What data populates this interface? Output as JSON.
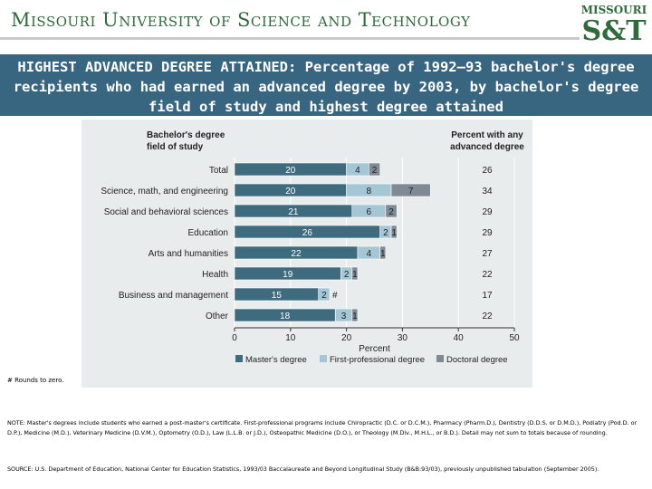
{
  "header": {
    "university": "Missouri University of Science and Technology",
    "logo_top": "MISSOURI",
    "logo_bottom": "S&T"
  },
  "banner": {
    "title": "HIGHEST ADVANCED DEGREE ATTAINED: Percentage of 1992–93 bachelor's degree recipients who had earned an advanced degree by 2003, by bachelor's degree field of study and highest degree attained"
  },
  "chart_data": {
    "type": "bar",
    "orientation": "horizontal",
    "stacked": true,
    "row_header": "Bachelor's degree field of study",
    "total_header": "Percent with any advanced degree",
    "xlabel": "Percent",
    "xlim": [
      0,
      50
    ],
    "xticks": [
      "0",
      "10",
      "20",
      "30",
      "40",
      "50"
    ],
    "categories": [
      "Total",
      "Science, math, and engineering",
      "Social and behavioral sciences",
      "Education",
      "Arts and humanities",
      "Health",
      "Business and management",
      "Other"
    ],
    "series": [
      {
        "name": "Master's degree",
        "color": "#3f6b7f",
        "values": [
          20,
          20,
          21,
          26,
          22,
          19,
          15,
          18
        ],
        "labels": [
          "20",
          "20",
          "21",
          "26",
          "22",
          "19",
          "15",
          "18"
        ]
      },
      {
        "name": "First-professional degree",
        "color": "#a5c6d4",
        "values": [
          4,
          8,
          6,
          2,
          4,
          2,
          2,
          3
        ],
        "labels": [
          "4",
          "8",
          "6",
          "2",
          "4",
          "2",
          "2",
          "3"
        ]
      },
      {
        "name": "Doctoral degree",
        "color": "#7f8a94",
        "values": [
          2,
          7,
          2,
          1,
          1,
          1,
          0,
          1
        ],
        "labels": [
          "2",
          "7",
          "2",
          "1",
          "1",
          "1",
          "#",
          "1"
        ]
      }
    ],
    "totals": [
      "26",
      "34",
      "29",
      "29",
      "27",
      "22",
      "17",
      "22"
    ],
    "legend_position": "bottom"
  },
  "footnote": "# Rounds to zero.",
  "note": "NOTE: Master's degrees include students who earned a post-master's certificate. First-professional programs include Chiropractic (D.C. or D.C.M.), Pharmacy (Pharm.D.), Dentistry (D.D.S. or D.M.D.), Podiatry (Pod.D. or D.P.), Medicine (M.D.), Veterinary Medicine (D.V.M.), Optometry (O.D.), Law (L.L.B. or J.D.), Osteopathic Medicine (D.O.), or Theology (M.Div., M.H.L., or B.D.). Detail may not sum to totals because of rounding.",
  "source": "SOURCE: U.S. Department of Education, National Center for Education Statistics, 1993/03 Baccalaureate and Beyond Longitudinal Study (B&B:93/03), previously unpublished tabulation (September 2005)."
}
